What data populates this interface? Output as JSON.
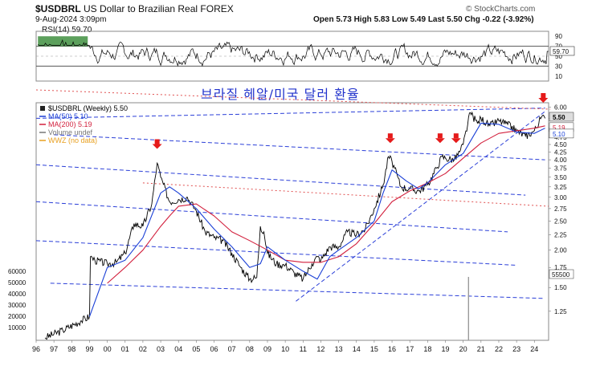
{
  "header": {
    "symbol": "$USDBRL",
    "name": "US Dollar to Brazilian Real",
    "market": "FOREX",
    "date": "9-Aug-2024 3:09pm",
    "ohlc": "Open 5.73  High 5.83  Low 5.49  Last 5.50",
    "chg": "Chg -0.22 (-3.92%)",
    "copyright": "© StockCharts.com"
  },
  "annotation": {
    "korean_title": "브라질 헤알/미국 달러 환율"
  },
  "colors": {
    "price": "#000000",
    "ma50": "#1a3fd6",
    "ma200": "#d21f3c",
    "trend": "#2b3fd8",
    "red_trend": "#e05050",
    "arrow": "#e51a1a",
    "rsi": "#000000",
    "rsi_fill": "#3f8f3f"
  },
  "chart_data": [
    {
      "type": "line",
      "panel": "rsi",
      "legend": "RSI(14) 59.70",
      "current": 59.7,
      "y_ticks": [
        90,
        70,
        50,
        30,
        10
      ],
      "ylim": [
        0,
        100
      ],
      "overbought": 70,
      "oversold": 30,
      "current_label": "59.70"
    },
    {
      "type": "line",
      "panel": "price",
      "scale": "log",
      "legend": [
        {
          "name": "$USDBRL (Weekly) 5.50",
          "color": "#000000"
        },
        {
          "name": "MA(50) 5.10",
          "color": "#1a3fd6"
        },
        {
          "name": "MA(200) 5.19",
          "color": "#d21f3c"
        },
        {
          "name": "Volume undef",
          "color": "#777777"
        },
        {
          "name": "WWZ (no data)",
          "color": "#e8a020"
        }
      ],
      "x_ticks": [
        "96",
        "97",
        "98",
        "99",
        "00",
        "01",
        "02",
        "03",
        "04",
        "05",
        "06",
        "07",
        "08",
        "09",
        "10",
        "11",
        "12",
        "13",
        "14",
        "15",
        "16",
        "17",
        "18",
        "19",
        "20",
        "21",
        "22",
        "23",
        "24"
      ],
      "y_ticks": [
        "6.00",
        "5.50",
        "5.10",
        "4.75",
        "4.50",
        "4.25",
        "4.00",
        "3.75",
        "3.50",
        "3.25",
        "3.00",
        "2.75",
        "2.50",
        "2.25",
        "2.00",
        "1.75",
        "1.50",
        "1.25"
      ],
      "ylim": [
        1.0,
        6.2
      ],
      "volume_ticks": [
        "60000",
        "50000",
        "40000",
        "30000",
        "20000",
        "10000"
      ],
      "price_labels": [
        "5.50",
        "5.19",
        "5.10"
      ],
      "volume_label": "55500",
      "series_price": {
        "x": [
          1996.5,
          1997.5,
          1998.5,
          1999.0,
          1999.05,
          1999.3,
          2000,
          2000.5,
          2001,
          2001.5,
          2002,
          2002.5,
          2002.8,
          2003,
          2003.5,
          2004,
          2004.5,
          2005,
          2005.5,
          2006,
          2006.5,
          2007,
          2007.5,
          2008,
          2008.4,
          2008.6,
          2008.8,
          2009,
          2009.5,
          2010,
          2010.5,
          2011,
          2011.5,
          2011.8,
          2012,
          2012.5,
          2013,
          2013.5,
          2014,
          2014.5,
          2015,
          2015.5,
          2015.8,
          2016,
          2016.5,
          2017,
          2017.5,
          2018,
          2018.5,
          2018.8,
          2019,
          2019.5,
          2019.8,
          2020,
          2020.4,
          2020.8,
          2021,
          2021.5,
          2022,
          2022.5,
          2023,
          2023.5,
          2024,
          2024.4,
          2024.6
        ],
        "y": [
          1.02,
          1.08,
          1.16,
          1.2,
          1.9,
          1.85,
          1.8,
          1.82,
          1.95,
          2.45,
          2.4,
          2.85,
          3.9,
          3.5,
          2.9,
          2.95,
          3.0,
          2.7,
          2.3,
          2.2,
          2.15,
          1.95,
          1.75,
          1.6,
          1.62,
          2.4,
          2.3,
          1.95,
          1.8,
          1.78,
          1.68,
          1.6,
          1.8,
          1.9,
          1.85,
          2.05,
          2.05,
          2.3,
          2.25,
          2.35,
          2.75,
          3.3,
          4.1,
          3.95,
          3.25,
          3.2,
          3.15,
          3.3,
          3.75,
          4.1,
          4.05,
          4.0,
          4.25,
          4.5,
          5.75,
          5.3,
          5.5,
          5.2,
          5.4,
          5.25,
          5.0,
          4.8,
          5.0,
          5.55,
          5.5
        ]
      },
      "series_ma50": {
        "x": [
          1999.0,
          2000,
          2001,
          2002,
          2003,
          2003.5,
          2004,
          2005,
          2006,
          2007,
          2008,
          2008.6,
          2009,
          2010,
          2011,
          2011.8,
          2012.5,
          2013,
          2014,
          2015,
          2015.5,
          2016,
          2016.8,
          2017.5,
          2018,
          2019,
          2020,
          2021,
          2022,
          2023,
          2024,
          2024.6
        ],
        "y": [
          1.2,
          1.75,
          1.85,
          2.2,
          3.1,
          3.25,
          3.1,
          2.75,
          2.35,
          2.05,
          1.75,
          1.8,
          2.05,
          1.85,
          1.7,
          1.6,
          1.9,
          2.0,
          2.2,
          2.5,
          3.1,
          3.7,
          3.4,
          3.2,
          3.35,
          3.85,
          4.2,
          5.3,
          5.25,
          4.95,
          4.9,
          5.1
        ]
      },
      "series_ma200": {
        "x": [
          2000.0,
          2001,
          2002,
          2003,
          2003.5,
          2004,
          2005,
          2006,
          2007,
          2008,
          2009,
          2010,
          2011,
          2012,
          2013,
          2014,
          2015,
          2016,
          2017,
          2018,
          2019,
          2020,
          2021,
          2022,
          2023,
          2024,
          2024.6
        ],
        "y": [
          1.55,
          1.75,
          2.0,
          2.4,
          2.6,
          2.8,
          2.85,
          2.6,
          2.3,
          2.15,
          2.0,
          1.85,
          1.82,
          1.82,
          1.9,
          2.1,
          2.45,
          2.9,
          3.15,
          3.35,
          3.6,
          4.05,
          4.55,
          4.9,
          5.0,
          5.1,
          5.19
        ]
      },
      "arrows_x": [
        2002.8,
        2015.9,
        2018.7,
        2019.6,
        2024.5
      ],
      "blue_dashed_lines": [
        {
          "x": [
            1996.8,
            2024.5
          ],
          "y": [
            1.55,
            1.38
          ]
        },
        {
          "x": [
            1996.0,
            2023.0
          ],
          "y": [
            2.15,
            1.78
          ]
        },
        {
          "x": [
            1996.0,
            2022.5
          ],
          "y": [
            2.9,
            2.3
          ]
        },
        {
          "x": [
            1996.0,
            2023.5
          ],
          "y": [
            3.85,
            3.05
          ]
        },
        {
          "x": [
            1997.0,
            2024.6
          ],
          "y": [
            4.85,
            4.0
          ]
        },
        {
          "x": [
            1996.0,
            2024.6
          ],
          "y": [
            5.5,
            5.95
          ]
        },
        {
          "x": [
            2010.6,
            2024.6
          ],
          "y": [
            1.35,
            5.8
          ]
        }
      ],
      "red_dotted_lines": [
        {
          "x": [
            1996.0,
            2024.9
          ],
          "y": [
            7.0,
            5.9
          ]
        },
        {
          "x": [
            2002.0,
            2024.8
          ],
          "y": [
            3.35,
            2.8
          ]
        }
      ]
    }
  ]
}
